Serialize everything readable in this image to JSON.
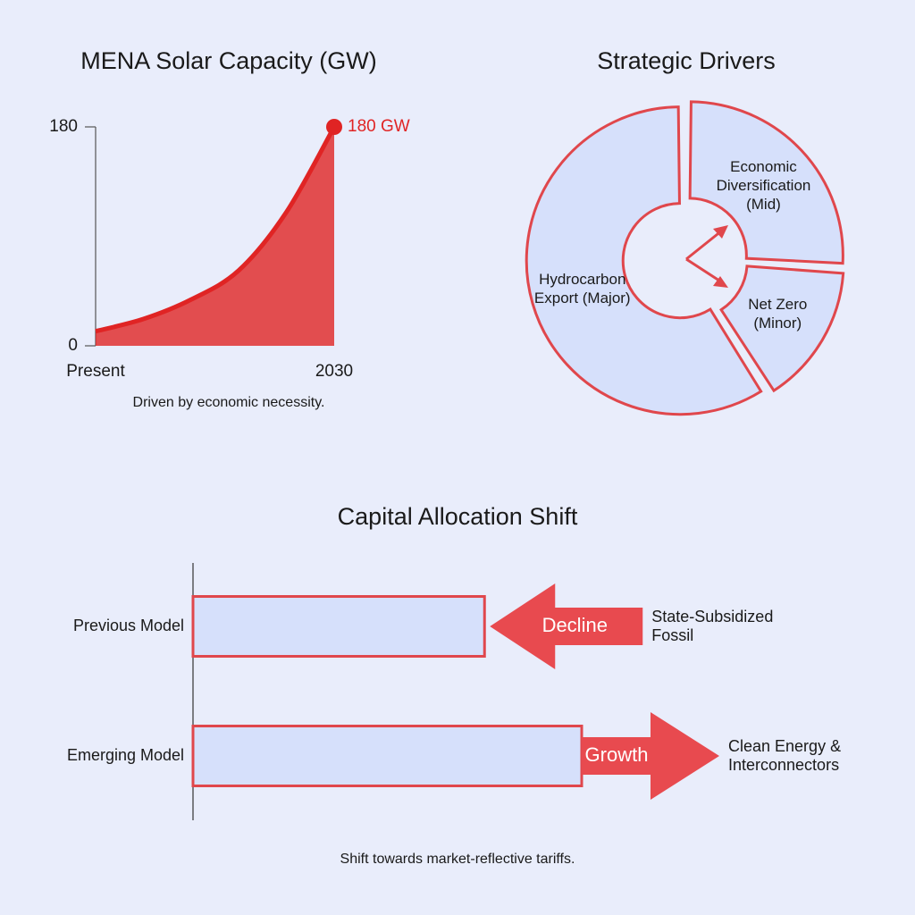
{
  "chart_data": [
    {
      "type": "area",
      "title": "MENA Solar Capacity (GW)",
      "categories": [
        "Present",
        null,
        null,
        null,
        null,
        "2030"
      ],
      "values": [
        12,
        22,
        38,
        62,
        110,
        180
      ],
      "value_labels": [
        null,
        null,
        null,
        null,
        null,
        "180 GW"
      ],
      "ylim": [
        0,
        180
      ],
      "yticks": [
        0,
        180
      ],
      "color": "#e02424",
      "note": "Driven by economic necessity."
    },
    {
      "type": "pie",
      "title": "Strategic Drivers",
      "categories": [
        "Economic Diversification (Mid)",
        "Net Zero (Minor)",
        "Hydrocarbon Export (Major)"
      ],
      "values": [
        26,
        15,
        59
      ],
      "color": "#d6e0fb",
      "edge_color": "#e0474c"
    },
    {
      "type": "bar",
      "orientation": "horizontal",
      "title": "Capital Allocation Shift",
      "categories": [
        "Previous Model",
        "Emerging Model"
      ],
      "values": [
        75,
        100
      ],
      "trends": [
        {
          "text": "Decline",
          "direction": "left",
          "label": "State-Subsidized Fossil"
        },
        {
          "text": "Growth",
          "direction": "right",
          "label": "Clean Energy & Interconnectors"
        }
      ],
      "color": "#d6e0fb",
      "edge_color": "#e0474c",
      "arrow_color": "#e84a4f",
      "note": "Shift towards market-reflective tariffs."
    }
  ]
}
